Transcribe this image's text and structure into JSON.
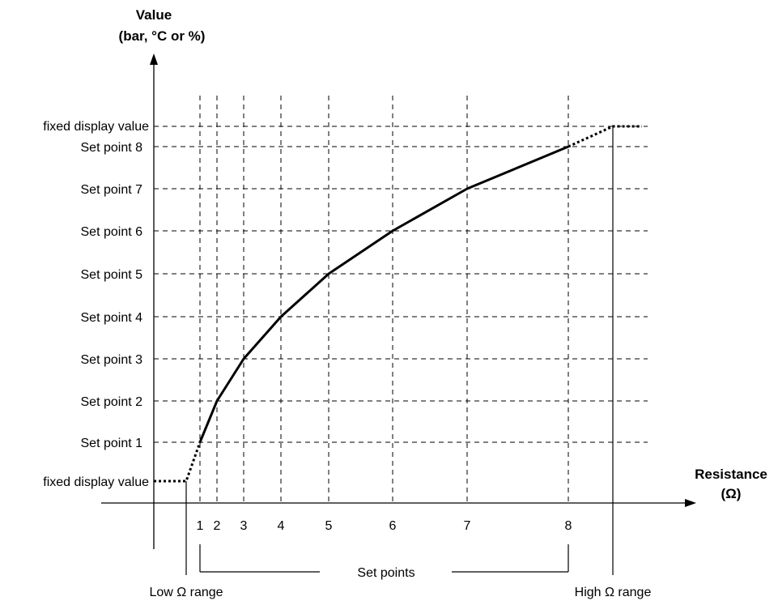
{
  "y_axis": {
    "title": "Value",
    "subtitle": "(bar, °C or %)",
    "labels": [
      "fixed display value",
      "Set point 8",
      "Set point 7",
      "Set point 6",
      "Set point 5",
      "Set point 4",
      "Set point 3",
      "Set point 2",
      "Set point 1",
      "fixed display value"
    ]
  },
  "x_axis": {
    "title": "Resistance",
    "unit": "(Ω)",
    "ticks": [
      "1",
      "2",
      "3",
      "4",
      "5",
      "6",
      "7",
      "8"
    ]
  },
  "annotations": {
    "set_points": "Set points",
    "low_range": "Low Ω range",
    "high_range": "High Ω range"
  }
}
